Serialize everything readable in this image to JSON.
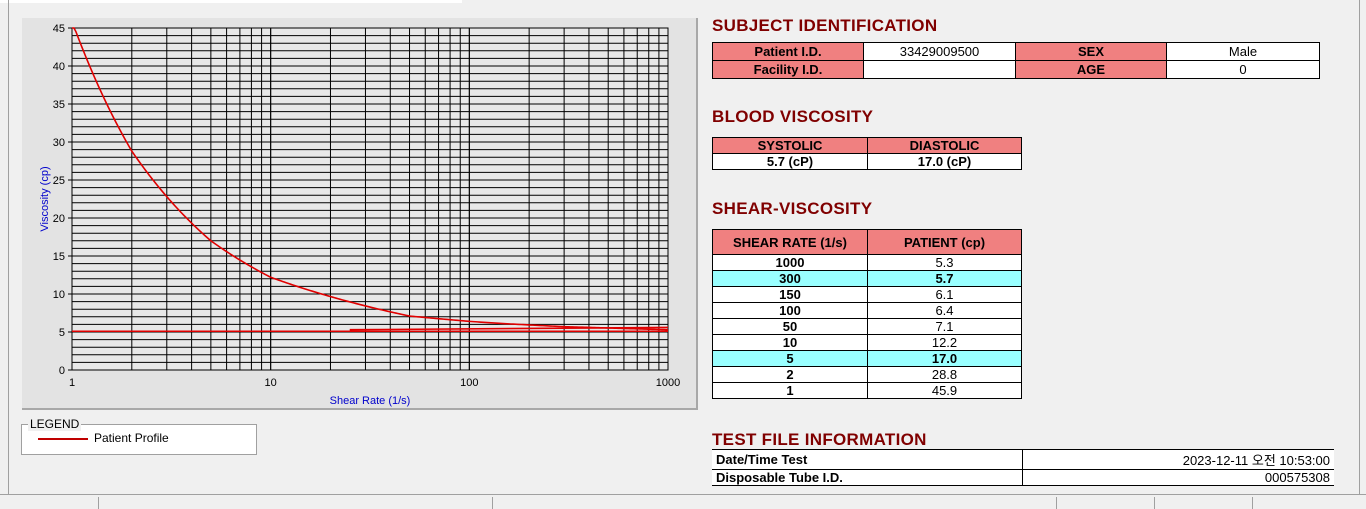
{
  "chart_data": {
    "type": "line",
    "xlabel": "Shear Rate (1/s)",
    "ylabel": "Viscosity (cp)",
    "xscale": "log",
    "xlim": [
      1,
      1000
    ],
    "ylim": [
      0,
      45
    ],
    "xticks": [
      "1",
      "10",
      "100",
      "1000"
    ],
    "yticks": [
      "0",
      "5",
      "10",
      "15",
      "20",
      "25",
      "30",
      "35",
      "40",
      "45"
    ],
    "grid": true,
    "series": [
      {
        "name": "Patient Profile",
        "color": "#e00000",
        "x": [
          1,
          2,
          5,
          10,
          50,
          100,
          150,
          300,
          1000
        ],
        "y": [
          45.9,
          28.8,
          17.0,
          12.2,
          7.1,
          6.4,
          6.1,
          5.7,
          5.3
        ]
      },
      {
        "name": "",
        "color": "#e00000",
        "x": [
          1,
          1000
        ],
        "y": [
          5.1,
          5.1
        ]
      },
      {
        "name": "",
        "color": "#e00000",
        "x": [
          25,
          1000
        ],
        "y": [
          5.3,
          5.6
        ]
      }
    ]
  },
  "legend": {
    "title": "LEGEND",
    "label": "Patient Profile"
  },
  "subject": {
    "title": "SUBJECT IDENTIFICATION",
    "patient_id_label": "Patient I.D.",
    "patient_id": "33429009500",
    "sex_label": "SEX",
    "sex": "Male",
    "facility_label": "Facility I.D.",
    "facility": "",
    "age_label": "AGE",
    "age": "0"
  },
  "blood": {
    "title": "BLOOD VISCOSITY",
    "systolic_label": "SYSTOLIC",
    "diastolic_label": "DIASTOLIC",
    "systolic": "5.7 (cP)",
    "diastolic": "17.0 (cP)"
  },
  "shear": {
    "title": "SHEAR-VISCOSITY",
    "col1": "SHEAR RATE (1/s)",
    "col2": "PATIENT (cp)",
    "rows": [
      [
        "1000",
        "5.3",
        false
      ],
      [
        "300",
        "5.7",
        true
      ],
      [
        "150",
        "6.1",
        false
      ],
      [
        "100",
        "6.4",
        false
      ],
      [
        "50",
        "7.1",
        false
      ],
      [
        "10",
        "12.2",
        false
      ],
      [
        "5",
        "17.0",
        true
      ],
      [
        "2",
        "28.8",
        false
      ],
      [
        "1",
        "45.9",
        false
      ]
    ]
  },
  "testfile": {
    "title": "TEST FILE INFORMATION",
    "date_label": "Date/Time Test",
    "date": "2023-12-11   오전 10:53:00",
    "tube_label": "Disposable Tube I.D.",
    "tube": "000575308"
  }
}
